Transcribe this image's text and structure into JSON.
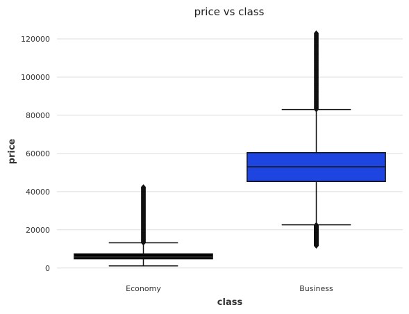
{
  "chart_data": {
    "type": "box",
    "title": "price vs class",
    "xlabel": "class",
    "ylabel": "price",
    "categories": [
      "Economy",
      "Business"
    ],
    "ylim": [
      -3000,
      128000
    ],
    "yticks": [
      0,
      20000,
      40000,
      60000,
      80000,
      100000,
      120000
    ],
    "grid": "horizontal",
    "boxes": [
      {
        "name": "Economy",
        "color": "#000000",
        "whisker_low": 1100,
        "q1": 4800,
        "median": 5800,
        "q3": 7400,
        "whisker_high": 13200,
        "outliers_high_range": [
          13200,
          42400
        ],
        "outliers_low_range": null
      },
      {
        "name": "Business",
        "color": "#1f45e0",
        "whisker_low": 22600,
        "q1": 45300,
        "median": 53000,
        "q3": 60400,
        "whisker_high": 83000,
        "outliers_high_range": [
          83000,
          123000
        ],
        "outliers_low_range": [
          11600,
          22600
        ]
      }
    ]
  }
}
